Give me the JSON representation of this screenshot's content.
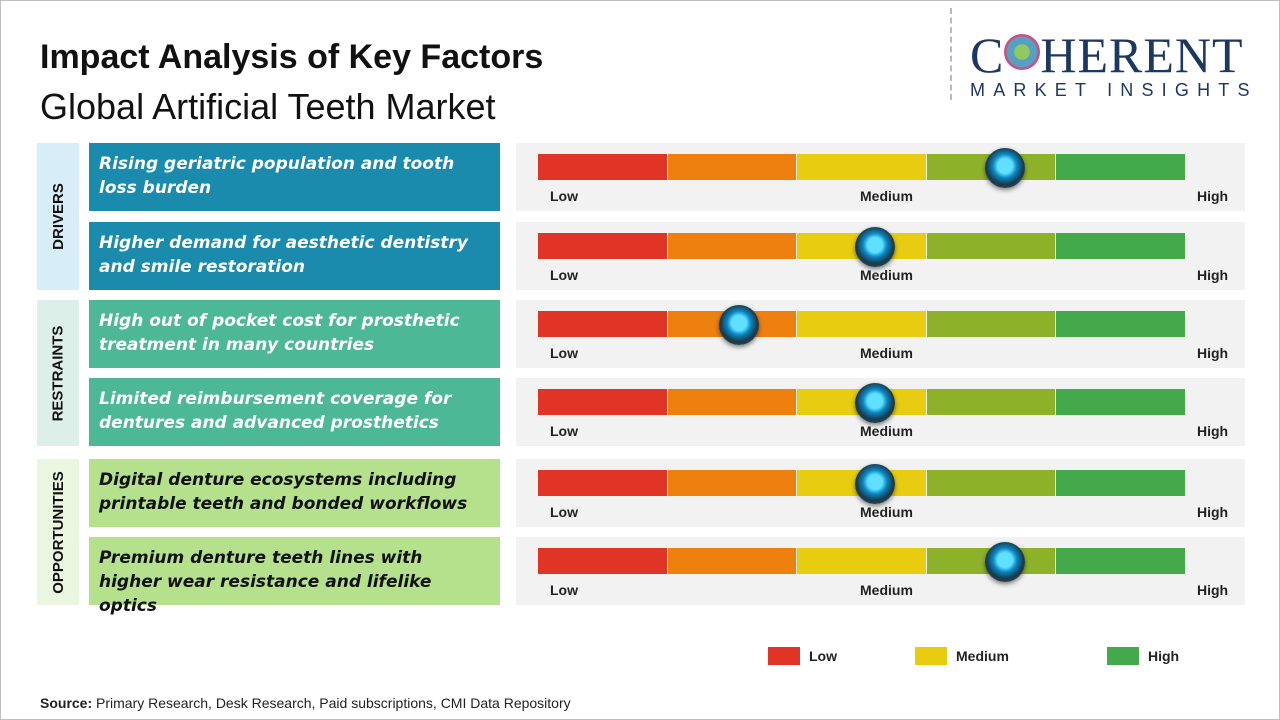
{
  "title": "Impact Analysis of Key Factors",
  "subtitle": "Global Artificial Teeth Market",
  "logo": {
    "text_main_1": "C",
    "text_main_2": "HERENT",
    "text_sub": "MARKET INSIGHTS"
  },
  "colors": {
    "low": "#e03426",
    "low_mid": "#ee8010",
    "medium": "#e8cc10",
    "mid_high": "#8db22a",
    "high": "#43a94a",
    "drivers": "#1a8aad",
    "restraints": "#4db896",
    "opportunities": "#b5e08c"
  },
  "chart_data": {
    "type": "gauge-scale",
    "scale_labels": {
      "low": "Low",
      "medium": "Medium",
      "high": "High"
    },
    "range": [
      0,
      1
    ],
    "groups": [
      {
        "name": "DRIVERS",
        "bg": "#d7eef8",
        "box": "#1a8aad",
        "text": "#fff",
        "factors": [
          {
            "label": "Rising geriatric population and tooth loss burden",
            "impact": 0.72
          },
          {
            "label": "Higher demand for aesthetic dentistry and smile restoration",
            "impact": 0.52
          }
        ]
      },
      {
        "name": "RESTRAINTS",
        "bg": "#dcefe9",
        "box": "#4db896",
        "text": "#fff",
        "factors": [
          {
            "label": "High out of pocket cost for prosthetic treatment in many countries",
            "impact": 0.31
          },
          {
            "label": "Limited reimbursement coverage for dentures and advanced prosthetics",
            "impact": 0.52
          }
        ]
      },
      {
        "name": "OPPORTUNITIES",
        "bg": "#eaf6df",
        "box": "#b5e08c",
        "text": "#111",
        "factors": [
          {
            "label": "Digital denture ecosystems including printable teeth and bonded workflows",
            "impact": 0.52
          },
          {
            "label": "Premium denture teeth lines with higher wear resistance and lifelike optics",
            "impact": 0.72
          }
        ]
      }
    ],
    "legend": [
      {
        "label": "Low",
        "color": "#e03426"
      },
      {
        "label": "Medium",
        "color": "#e8cc10"
      },
      {
        "label": "High",
        "color": "#43a94a"
      }
    ]
  },
  "source": {
    "label": "Source:",
    "text": " Primary Research, Desk Research, Paid subscriptions, CMI Data Repository"
  }
}
